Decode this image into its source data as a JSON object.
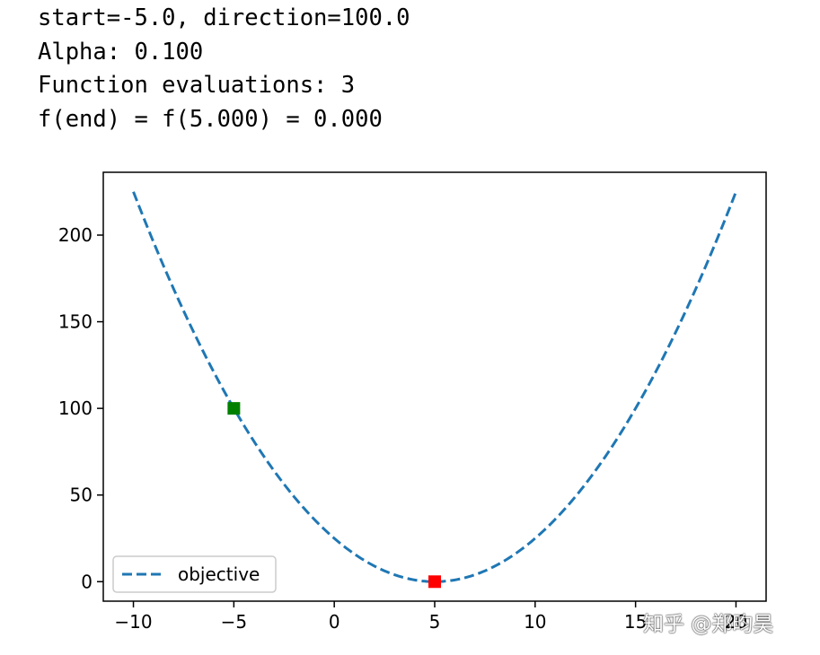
{
  "output": {
    "lines": [
      "start=-5.0, direction=100.0",
      "Alpha: 0.100",
      "Function evaluations: 3",
      "f(end) = f(5.000) = 0.000"
    ]
  },
  "watermark": "知乎 @郑昀昊",
  "chart_data": {
    "type": "line",
    "title": "",
    "xlabel": "",
    "ylabel": "",
    "xlim": [
      -11.5,
      21.5
    ],
    "ylim": [
      -11.25,
      236.25
    ],
    "x_ticks": [
      -10,
      -5,
      0,
      5,
      10,
      15,
      20
    ],
    "y_ticks": [
      0,
      50,
      100,
      150,
      200
    ],
    "x_tick_labels": [
      "−10",
      "−5",
      "0",
      "5",
      "10",
      "15",
      "20"
    ],
    "y_tick_labels": [
      "0",
      "50",
      "100",
      "150",
      "200"
    ],
    "grid": false,
    "legend": {
      "position": "lower-left"
    },
    "series": [
      {
        "name": "objective",
        "style": "dashed",
        "color": "#1f77b4",
        "x": [
          -10,
          -9,
          -8,
          -7,
          -6,
          -5,
          -4,
          -3,
          -2,
          -1,
          0,
          1,
          2,
          3,
          4,
          5,
          6,
          7,
          8,
          9,
          10,
          11,
          12,
          13,
          14,
          15,
          16,
          17,
          18,
          19,
          20
        ],
        "y": [
          225,
          196,
          169,
          144,
          121,
          100,
          81,
          64,
          49,
          36,
          25,
          16,
          9,
          4,
          1,
          0,
          1,
          4,
          9,
          16,
          25,
          36,
          49,
          64,
          81,
          100,
          121,
          144,
          169,
          196,
          225
        ]
      }
    ],
    "markers": [
      {
        "label": "start",
        "x": -5,
        "y": 100,
        "color": "#008000",
        "shape": "square"
      },
      {
        "label": "end",
        "x": 5,
        "y": 0,
        "color": "#ff0000",
        "shape": "square"
      }
    ]
  }
}
